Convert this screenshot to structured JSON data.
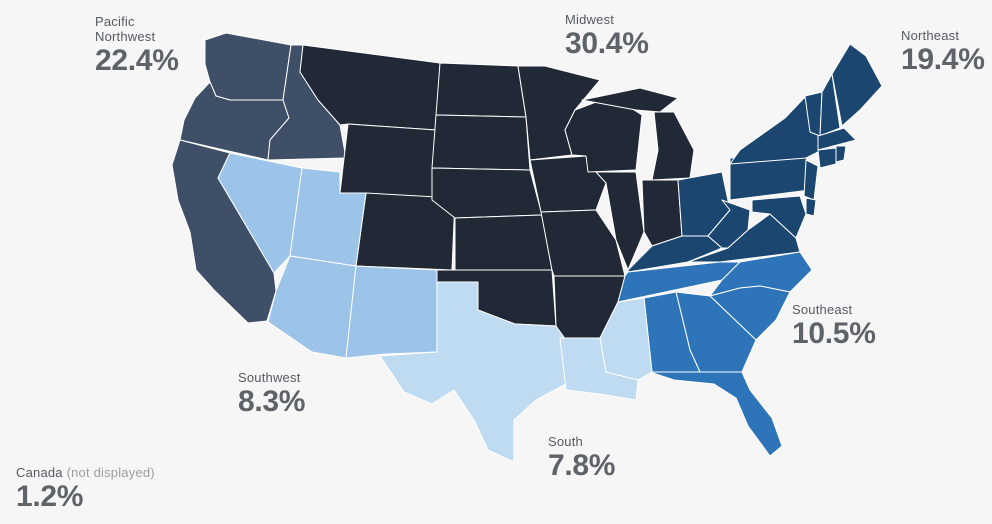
{
  "colors": {
    "background": "#f6f6f6",
    "pacific_northwest": "#3f4f67",
    "midwest": "#212836",
    "northeast": "#1a4670",
    "southeast": "#2e74b8",
    "southwest": "#9bc4e8",
    "south": "#bedbf1",
    "state_border": "#ffffff"
  },
  "regions": {
    "pacific_northwest": {
      "name": "Pacific Northwest",
      "pct": "22.4%"
    },
    "midwest": {
      "name": "Midwest",
      "pct": "30.4%"
    },
    "northeast": {
      "name": "Northeast",
      "pct": "19.4%"
    },
    "southeast": {
      "name": "Southeast",
      "pct": "10.5%"
    },
    "southwest": {
      "name": "Southwest",
      "pct": "8.3%"
    },
    "south": {
      "name": "South",
      "pct": "7.8%"
    },
    "canada": {
      "name": "Canada",
      "note": "(not displayed)",
      "pct": "1.2%"
    }
  }
}
